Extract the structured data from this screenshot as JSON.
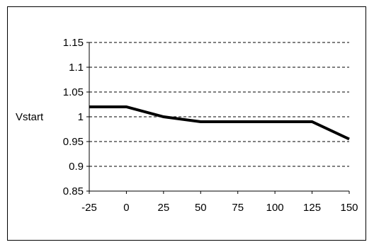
{
  "chart_data": {
    "type": "line",
    "title": "",
    "xlabel": "",
    "ylabel": "Vstart",
    "x": [
      -25,
      0,
      25,
      50,
      75,
      100,
      125,
      150
    ],
    "series": [
      {
        "values": [
          1.02,
          1.02,
          1.0,
          0.99,
          0.99,
          0.99,
          0.99,
          0.955
        ],
        "color": "#000000"
      }
    ],
    "xlim": [
      -25,
      150
    ],
    "ylim": [
      0.85,
      1.15
    ],
    "x_ticks": [
      -25,
      0,
      25,
      50,
      75,
      100,
      125,
      150
    ],
    "x_tick_labels": [
      "-25",
      "0",
      "25",
      "50",
      "75",
      "100",
      "125",
      "150"
    ],
    "y_ticks": [
      0.85,
      0.9,
      0.95,
      1.0,
      1.05,
      1.1,
      1.15
    ],
    "y_tick_labels": [
      "0.85",
      "0.9",
      "0.95",
      "1",
      "1.05",
      "1.1",
      "1.15"
    ],
    "grid": "horizontal dashed",
    "legend": "none"
  }
}
